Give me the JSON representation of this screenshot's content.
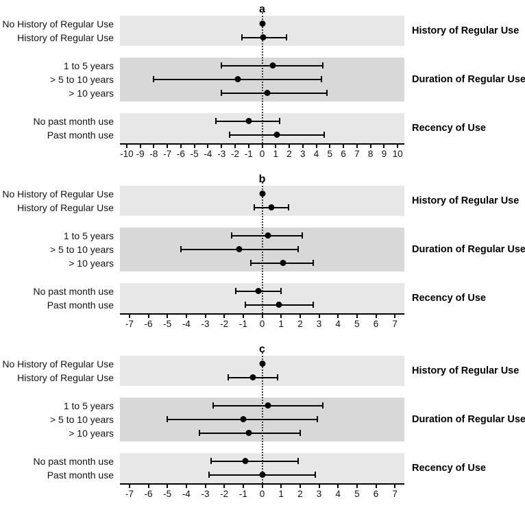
{
  "colors": {
    "band_light": "#e7e7e7",
    "band_dark": "#d8d8d8",
    "ink": "#000000"
  },
  "chart_data": [
    {
      "type": "forest",
      "panel_label": "a",
      "axis": {
        "min": -10,
        "max": 10,
        "step": 1,
        "pad": 0.5,
        "zero_line": 0
      },
      "groups": [
        {
          "label": "History of Regular Use",
          "shade": "light",
          "rows": [
            {
              "label": "No History of Regular Use",
              "estimate": 0.0,
              "ci_low": null,
              "ci_high": null
            },
            {
              "label": "History of Regular Use",
              "estimate": 0.1,
              "ci_low": -1.5,
              "ci_high": 1.8
            }
          ]
        },
        {
          "label": "Duration of Regular Use",
          "shade": "dark",
          "rows": [
            {
              "label": "1 to 5 years",
              "estimate": 0.8,
              "ci_low": -3.0,
              "ci_high": 4.5
            },
            {
              "label": "> 5 to 10 years",
              "estimate": -1.8,
              "ci_low": -8.0,
              "ci_high": 4.4
            },
            {
              "label": "> 10 years",
              "estimate": 0.4,
              "ci_low": -3.0,
              "ci_high": 4.8
            }
          ]
        },
        {
          "label": "Recency of Use",
          "shade": "light",
          "rows": [
            {
              "label": "No past month use",
              "estimate": -1.0,
              "ci_low": -3.4,
              "ci_high": 1.3
            },
            {
              "label": "Past month use",
              "estimate": 1.1,
              "ci_low": -2.4,
              "ci_high": 4.6
            }
          ]
        }
      ]
    },
    {
      "type": "forest",
      "panel_label": "b",
      "axis": {
        "min": -7,
        "max": 7,
        "step": 1,
        "pad": 0.5,
        "zero_line": 0
      },
      "groups": [
        {
          "label": "History of Regular Use",
          "shade": "light",
          "rows": [
            {
              "label": "No History of Regular Use",
              "estimate": 0.0,
              "ci_low": null,
              "ci_high": null
            },
            {
              "label": "History of Regular Use",
              "estimate": 0.5,
              "ci_low": -0.4,
              "ci_high": 1.4
            }
          ]
        },
        {
          "label": "Duration of Regular Use",
          "shade": "dark",
          "rows": [
            {
              "label": "1 to 5 years",
              "estimate": 0.3,
              "ci_low": -1.6,
              "ci_high": 2.1
            },
            {
              "label": "> 5 to 10 years",
              "estimate": -1.2,
              "ci_low": -4.3,
              "ci_high": 1.9
            },
            {
              "label": "> 10 years",
              "estimate": 1.1,
              "ci_low": -0.6,
              "ci_high": 2.7
            }
          ]
        },
        {
          "label": "Recency of Use",
          "shade": "light",
          "rows": [
            {
              "label": "No past month use",
              "estimate": -0.2,
              "ci_low": -1.4,
              "ci_high": 1.0
            },
            {
              "label": "Past month use",
              "estimate": 0.9,
              "ci_low": -0.9,
              "ci_high": 2.7
            }
          ]
        }
      ]
    },
    {
      "type": "forest",
      "panel_label": "c",
      "axis": {
        "min": -7,
        "max": 7,
        "step": 1,
        "pad": 0.5,
        "zero_line": 0
      },
      "groups": [
        {
          "label": "History of Regular Use",
          "shade": "light",
          "rows": [
            {
              "label": "No History of Regular Use",
              "estimate": 0.0,
              "ci_low": null,
              "ci_high": null
            },
            {
              "label": "History of Regular Use",
              "estimate": -0.5,
              "ci_low": -1.8,
              "ci_high": 0.8
            }
          ]
        },
        {
          "label": "Duration of Regular Use",
          "shade": "dark",
          "rows": [
            {
              "label": "1 to 5 years",
              "estimate": 0.3,
              "ci_low": -2.6,
              "ci_high": 3.2
            },
            {
              "label": "> 5 to 10 years",
              "estimate": -1.0,
              "ci_low": -5.0,
              "ci_high": 2.9
            },
            {
              "label": "> 10 years",
              "estimate": -0.7,
              "ci_low": -3.3,
              "ci_high": 2.0
            }
          ]
        },
        {
          "label": "Recency of Use",
          "shade": "light",
          "rows": [
            {
              "label": "No past month use",
              "estimate": -0.9,
              "ci_low": -2.7,
              "ci_high": 1.9
            },
            {
              "label": "Past month use",
              "estimate": 0.0,
              "ci_low": -2.8,
              "ci_high": 2.8
            }
          ]
        }
      ]
    }
  ]
}
